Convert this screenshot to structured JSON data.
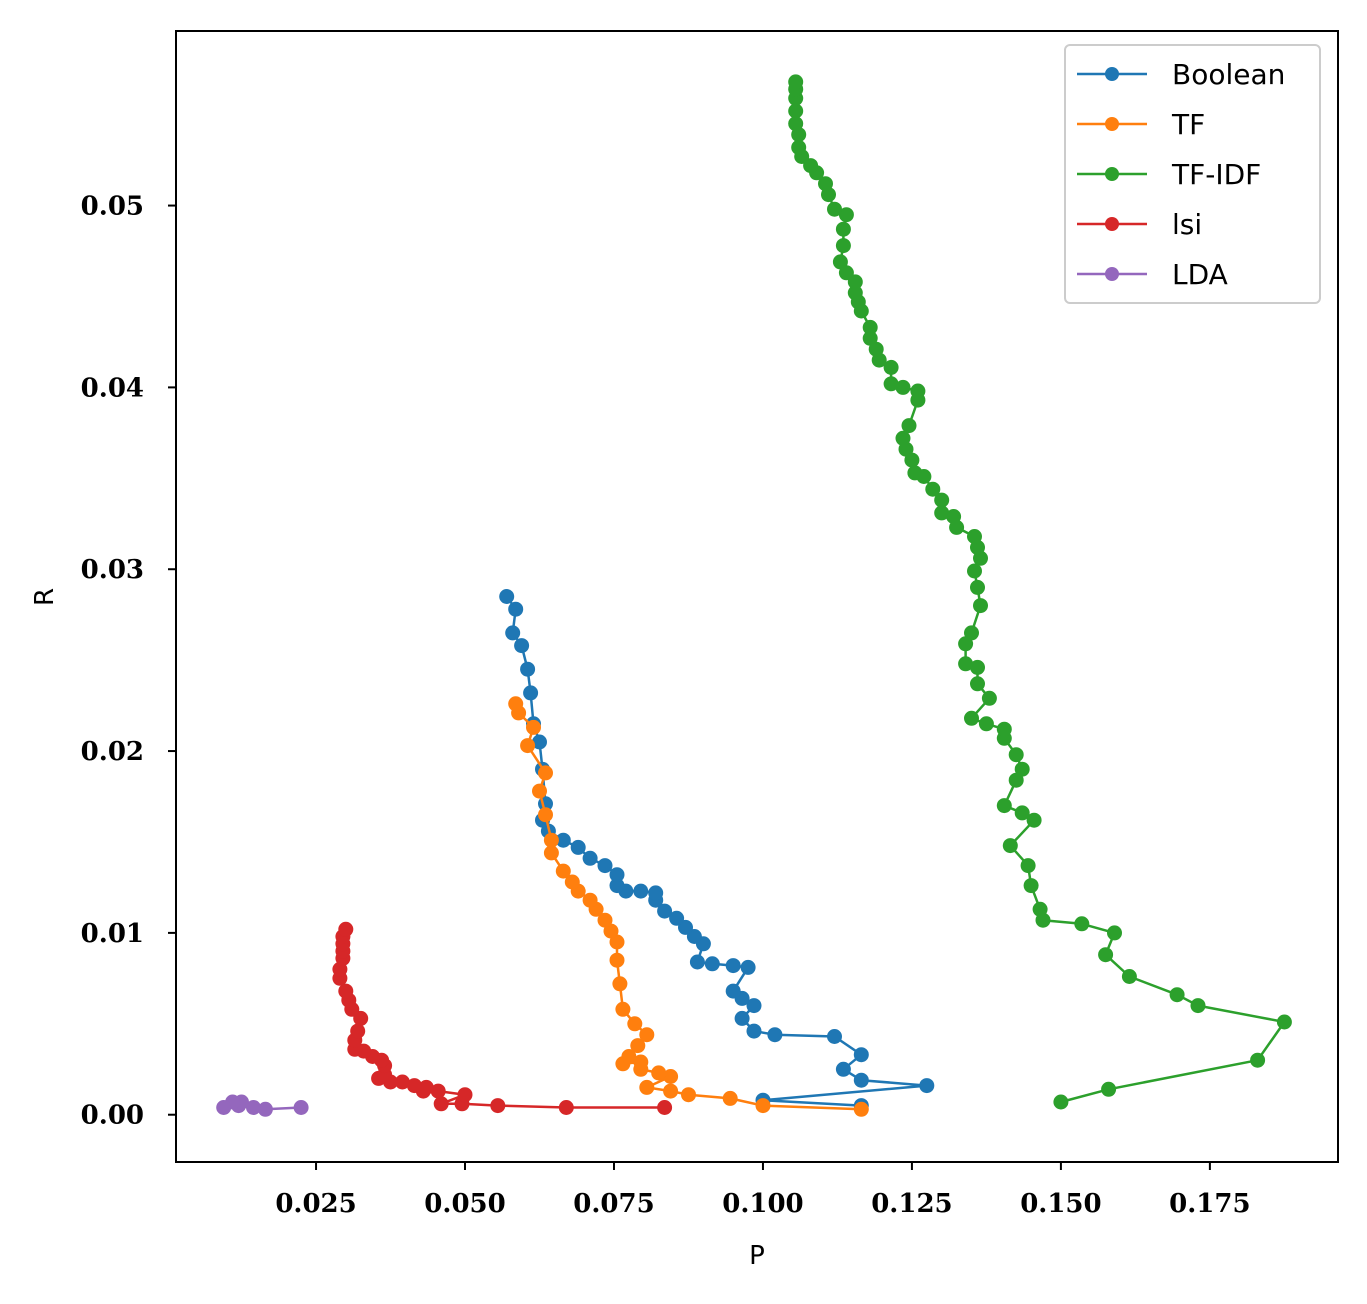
{
  "chart_data": {
    "type": "line",
    "xlabel": "P",
    "ylabel": "R",
    "xlim": [
      0.0015,
      0.1965
    ],
    "ylim": [
      -0.0026,
      0.0596
    ],
    "xticks": [
      0.025,
      0.05,
      0.075,
      0.1,
      0.125,
      0.15,
      0.175
    ],
    "xtick_labels": [
      "0.025",
      "0.050",
      "0.075",
      "0.100",
      "0.125",
      "0.150",
      "0.175"
    ],
    "yticks": [
      0.0,
      0.01,
      0.02,
      0.03,
      0.04,
      0.05
    ],
    "ytick_labels": [
      "0.00",
      "0.01",
      "0.02",
      "0.03",
      "0.04",
      "0.05"
    ],
    "grid": false,
    "legend_position": "top-right",
    "series": [
      {
        "name": "Boolean",
        "color": "#1f77b4",
        "points": [
          [
            0.1165,
            0.0005
          ],
          [
            0.1,
            0.0008
          ],
          [
            0.1275,
            0.0016
          ],
          [
            0.1165,
            0.0019
          ],
          [
            0.1135,
            0.0025
          ],
          [
            0.1165,
            0.0033
          ],
          [
            0.112,
            0.0043
          ],
          [
            0.102,
            0.0044
          ],
          [
            0.0985,
            0.0046
          ],
          [
            0.0965,
            0.0053
          ],
          [
            0.0985,
            0.006
          ],
          [
            0.0965,
            0.0064
          ],
          [
            0.095,
            0.0068
          ],
          [
            0.0975,
            0.0081
          ],
          [
            0.095,
            0.0082
          ],
          [
            0.0915,
            0.0083
          ],
          [
            0.089,
            0.0084
          ],
          [
            0.09,
            0.0094
          ],
          [
            0.0885,
            0.0098
          ],
          [
            0.087,
            0.0103
          ],
          [
            0.0855,
            0.0108
          ],
          [
            0.0835,
            0.0112
          ],
          [
            0.082,
            0.0118
          ],
          [
            0.082,
            0.0122
          ],
          [
            0.0795,
            0.0123
          ],
          [
            0.077,
            0.0123
          ],
          [
            0.0755,
            0.0126
          ],
          [
            0.0755,
            0.0132
          ],
          [
            0.0735,
            0.0137
          ],
          [
            0.071,
            0.0141
          ],
          [
            0.069,
            0.0147
          ],
          [
            0.0665,
            0.0151
          ],
          [
            0.064,
            0.0156
          ],
          [
            0.063,
            0.0162
          ],
          [
            0.0635,
            0.0171
          ],
          [
            0.063,
            0.019
          ],
          [
            0.0625,
            0.0205
          ],
          [
            0.0615,
            0.0215
          ],
          [
            0.061,
            0.0232
          ],
          [
            0.0605,
            0.0245
          ],
          [
            0.0595,
            0.0258
          ],
          [
            0.058,
            0.0265
          ],
          [
            0.0585,
            0.0278
          ],
          [
            0.057,
            0.0285
          ]
        ]
      },
      {
        "name": "TF",
        "color": "#ff7f0e",
        "points": [
          [
            0.1165,
            0.0003
          ],
          [
            0.1,
            0.0005
          ],
          [
            0.0945,
            0.0009
          ],
          [
            0.0875,
            0.0011
          ],
          [
            0.0845,
            0.0013
          ],
          [
            0.0805,
            0.0015
          ],
          [
            0.0845,
            0.0021
          ],
          [
            0.0825,
            0.0023
          ],
          [
            0.0795,
            0.0025
          ],
          [
            0.0795,
            0.0029
          ],
          [
            0.0765,
            0.0028
          ],
          [
            0.0775,
            0.0032
          ],
          [
            0.079,
            0.0038
          ],
          [
            0.0805,
            0.0044
          ],
          [
            0.0785,
            0.005
          ],
          [
            0.0765,
            0.0058
          ],
          [
            0.076,
            0.0072
          ],
          [
            0.0755,
            0.0085
          ],
          [
            0.0755,
            0.0095
          ],
          [
            0.0745,
            0.0101
          ],
          [
            0.0735,
            0.0107
          ],
          [
            0.072,
            0.0113
          ],
          [
            0.071,
            0.0118
          ],
          [
            0.069,
            0.0123
          ],
          [
            0.068,
            0.0128
          ],
          [
            0.0665,
            0.0134
          ],
          [
            0.0645,
            0.0144
          ],
          [
            0.0645,
            0.0151
          ],
          [
            0.0635,
            0.0165
          ],
          [
            0.0625,
            0.0178
          ],
          [
            0.0635,
            0.0188
          ],
          [
            0.0605,
            0.0203
          ],
          [
            0.0615,
            0.0213
          ],
          [
            0.059,
            0.0221
          ],
          [
            0.0585,
            0.0226
          ]
        ]
      },
      {
        "name": "TF-IDF",
        "color": "#2ca02c",
        "points": [
          [
            0.15,
            0.0007
          ],
          [
            0.158,
            0.0014
          ],
          [
            0.183,
            0.003
          ],
          [
            0.1875,
            0.0051
          ],
          [
            0.173,
            0.006
          ],
          [
            0.1695,
            0.0066
          ],
          [
            0.1615,
            0.0076
          ],
          [
            0.1575,
            0.0088
          ],
          [
            0.159,
            0.01
          ],
          [
            0.1535,
            0.0105
          ],
          [
            0.147,
            0.0107
          ],
          [
            0.1465,
            0.0113
          ],
          [
            0.145,
            0.0126
          ],
          [
            0.1445,
            0.0137
          ],
          [
            0.1415,
            0.0148
          ],
          [
            0.1455,
            0.0162
          ],
          [
            0.1435,
            0.0166
          ],
          [
            0.1405,
            0.017
          ],
          [
            0.1425,
            0.0184
          ],
          [
            0.1435,
            0.019
          ],
          [
            0.1425,
            0.0198
          ],
          [
            0.1405,
            0.0207
          ],
          [
            0.1405,
            0.0212
          ],
          [
            0.1375,
            0.0215
          ],
          [
            0.135,
            0.0218
          ],
          [
            0.138,
            0.0229
          ],
          [
            0.136,
            0.0237
          ],
          [
            0.136,
            0.0246
          ],
          [
            0.134,
            0.0248
          ],
          [
            0.134,
            0.0259
          ],
          [
            0.135,
            0.0265
          ],
          [
            0.1365,
            0.028
          ],
          [
            0.136,
            0.029
          ],
          [
            0.1355,
            0.0299
          ],
          [
            0.1365,
            0.0306
          ],
          [
            0.136,
            0.0312
          ],
          [
            0.1355,
            0.0318
          ],
          [
            0.1325,
            0.0323
          ],
          [
            0.132,
            0.0329
          ],
          [
            0.13,
            0.0331
          ],
          [
            0.13,
            0.0338
          ],
          [
            0.1285,
            0.0344
          ],
          [
            0.127,
            0.0351
          ],
          [
            0.1255,
            0.0353
          ],
          [
            0.125,
            0.036
          ],
          [
            0.124,
            0.0366
          ],
          [
            0.1235,
            0.0372
          ],
          [
            0.1245,
            0.0379
          ],
          [
            0.126,
            0.0393
          ],
          [
            0.126,
            0.0398
          ],
          [
            0.1235,
            0.04
          ],
          [
            0.1215,
            0.0402
          ],
          [
            0.1215,
            0.0411
          ],
          [
            0.1195,
            0.0415
          ],
          [
            0.119,
            0.0421
          ],
          [
            0.118,
            0.0427
          ],
          [
            0.118,
            0.0433
          ],
          [
            0.1165,
            0.0442
          ],
          [
            0.116,
            0.0447
          ],
          [
            0.1155,
            0.0452
          ],
          [
            0.1155,
            0.0458
          ],
          [
            0.114,
            0.0463
          ],
          [
            0.113,
            0.0469
          ],
          [
            0.1135,
            0.0478
          ],
          [
            0.1135,
            0.0487
          ],
          [
            0.114,
            0.0495
          ],
          [
            0.112,
            0.0498
          ],
          [
            0.111,
            0.0506
          ],
          [
            0.1105,
            0.0512
          ],
          [
            0.109,
            0.0518
          ],
          [
            0.108,
            0.0522
          ],
          [
            0.1065,
            0.0527
          ],
          [
            0.106,
            0.0532
          ],
          [
            0.106,
            0.0539
          ],
          [
            0.1055,
            0.0545
          ],
          [
            0.1055,
            0.0552
          ],
          [
            0.1055,
            0.0559
          ],
          [
            0.1055,
            0.0564
          ],
          [
            0.1055,
            0.0568
          ]
        ]
      },
      {
        "name": "lsi",
        "color": "#d62728",
        "points": [
          [
            0.0835,
            0.0004
          ],
          [
            0.067,
            0.0004
          ],
          [
            0.0555,
            0.0005
          ],
          [
            0.0495,
            0.0006
          ],
          [
            0.046,
            0.0006
          ],
          [
            0.05,
            0.0011
          ],
          [
            0.0455,
            0.0013
          ],
          [
            0.043,
            0.0013
          ],
          [
            0.0435,
            0.0015
          ],
          [
            0.0415,
            0.0016
          ],
          [
            0.0395,
            0.0018
          ],
          [
            0.0375,
            0.0018
          ],
          [
            0.0355,
            0.002
          ],
          [
            0.0365,
            0.0022
          ],
          [
            0.0365,
            0.0027
          ],
          [
            0.036,
            0.003
          ],
          [
            0.0345,
            0.0032
          ],
          [
            0.033,
            0.0035
          ],
          [
            0.0315,
            0.0036
          ],
          [
            0.0315,
            0.0041
          ],
          [
            0.032,
            0.0046
          ],
          [
            0.0325,
            0.0053
          ],
          [
            0.031,
            0.0058
          ],
          [
            0.0305,
            0.0063
          ],
          [
            0.03,
            0.0068
          ],
          [
            0.029,
            0.0075
          ],
          [
            0.029,
            0.008
          ],
          [
            0.0295,
            0.0086
          ],
          [
            0.0295,
            0.009
          ],
          [
            0.0295,
            0.0094
          ],
          [
            0.0295,
            0.0098
          ],
          [
            0.03,
            0.0102
          ]
        ]
      },
      {
        "name": "LDA",
        "color": "#9467bd",
        "points": [
          [
            0.0225,
            0.0004
          ],
          [
            0.0165,
            0.0003
          ],
          [
            0.0145,
            0.0004
          ],
          [
            0.012,
            0.0005
          ],
          [
            0.0125,
            0.0007
          ],
          [
            0.011,
            0.0007
          ],
          [
            0.0095,
            0.0004
          ]
        ]
      }
    ]
  }
}
